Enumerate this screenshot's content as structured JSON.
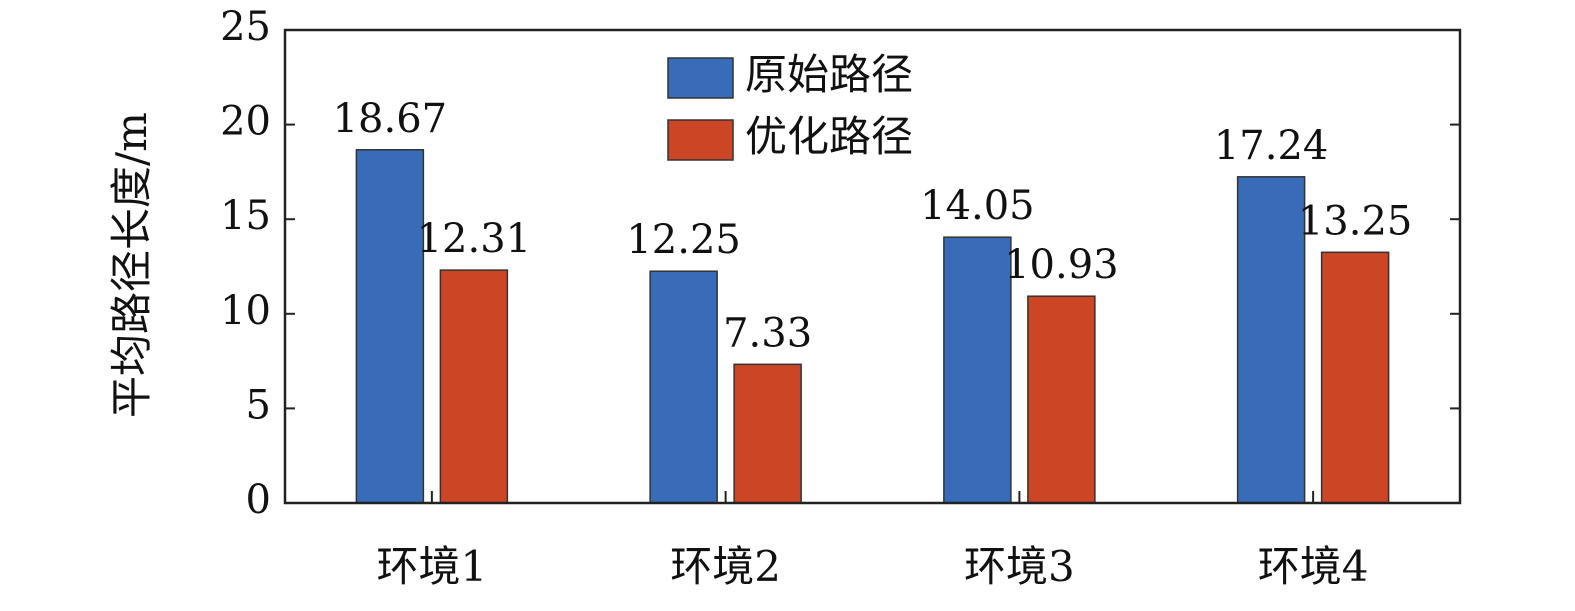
{
  "chart_data": {
    "type": "bar",
    "ylabel": "平均路径长度/m",
    "categories": [
      "环境1",
      "环境2",
      "环境3",
      "环境4"
    ],
    "series": [
      {
        "name": "原始路径",
        "color": "#386cb8",
        "values": [
          18.67,
          12.25,
          14.05,
          17.24
        ]
      },
      {
        "name": "优化路径",
        "color": "#cc4524",
        "values": [
          12.31,
          7.33,
          10.93,
          13.25
        ]
      }
    ],
    "ylim": [
      0,
      25
    ],
    "yticks": [
      0,
      5,
      10,
      15,
      20,
      25
    ],
    "legend": "top"
  }
}
